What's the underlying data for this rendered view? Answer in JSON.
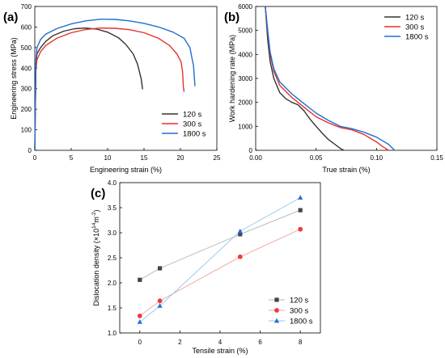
{
  "chart_data": [
    {
      "panel": "(a)",
      "type": "line",
      "xlabel": "Engineering strain (%)",
      "ylabel": "Engineering stress (MPa)",
      "xlim": [
        0,
        25
      ],
      "ylim": [
        0,
        700
      ],
      "xticks": [
        0,
        5,
        10,
        15,
        20,
        25
      ],
      "yticks": [
        0,
        100,
        200,
        300,
        400,
        500,
        600,
        700
      ],
      "legend_position": "bottom-right",
      "series": [
        {
          "name": "120 s",
          "color": "#333333",
          "x": [
            0,
            0.15,
            0.3,
            0.8,
            1.5,
            2.5,
            4,
            5.5,
            7,
            8.5,
            10,
            11.5,
            12.5,
            13.5,
            14.1,
            14.6,
            14.8
          ],
          "y": [
            0,
            420,
            470,
            500,
            530,
            558,
            580,
            592,
            595,
            590,
            575,
            548,
            515,
            470,
            420,
            350,
            297
          ]
        },
        {
          "name": "300 s",
          "color": "#e8302a",
          "x": [
            0,
            0.15,
            0.3,
            0.8,
            1.5,
            3,
            5,
            7,
            9,
            11,
            13,
            15,
            17,
            18.5,
            19.5,
            20.1,
            20.3,
            20.4,
            20.5
          ],
          "y": [
            0,
            390,
            440,
            480,
            510,
            545,
            572,
            588,
            595,
            594,
            587,
            572,
            545,
            510,
            470,
            430,
            380,
            310,
            285
          ]
        },
        {
          "name": "1800 s",
          "color": "#1f6fd1",
          "x": [
            0,
            0.15,
            0.3,
            0.8,
            1.5,
            3,
            5,
            7,
            9,
            11,
            13,
            15,
            17,
            19,
            20.5,
            21.3,
            21.8,
            22
          ],
          "y": [
            0,
            440,
            500,
            540,
            565,
            592,
            615,
            630,
            638,
            637,
            630,
            618,
            600,
            575,
            545,
            500,
            410,
            312
          ]
        }
      ]
    },
    {
      "panel": "(b)",
      "type": "line",
      "xlabel": "True strain (%)",
      "ylabel": "Work hardening rate (MPa)",
      "xlim": [
        0,
        0.15
      ],
      "ylim": [
        0,
        6000
      ],
      "xticks": [
        "0.00",
        "0.05",
        "0.10",
        "0.15"
      ],
      "yticks": [
        0,
        1000,
        2000,
        3000,
        4000,
        5000,
        6000
      ],
      "legend_position": "top-right",
      "series": [
        {
          "name": "120 s",
          "color": "#333333",
          "x": [
            0.008,
            0.01,
            0.012,
            0.015,
            0.02,
            0.025,
            0.03,
            0.035,
            0.04,
            0.045,
            0.05,
            0.055,
            0.06,
            0.065,
            0.07,
            0.073
          ],
          "y": [
            6000,
            4600,
            3700,
            3000,
            2400,
            2150,
            2000,
            1900,
            1650,
            1300,
            1000,
            720,
            460,
            270,
            80,
            0
          ]
        },
        {
          "name": "300 s",
          "color": "#e8302a",
          "x": [
            0.008,
            0.01,
            0.012,
            0.015,
            0.02,
            0.03,
            0.04,
            0.05,
            0.06,
            0.07,
            0.08,
            0.09,
            0.1,
            0.105,
            0.11
          ],
          "y": [
            6000,
            4900,
            4000,
            3300,
            2700,
            2200,
            1800,
            1400,
            1150,
            950,
            850,
            650,
            350,
            160,
            0
          ]
        },
        {
          "name": "1800 s",
          "color": "#1f6fd1",
          "x": [
            0.008,
            0.01,
            0.012,
            0.015,
            0.02,
            0.03,
            0.04,
            0.05,
            0.06,
            0.07,
            0.08,
            0.09,
            0.1,
            0.11,
            0.115
          ],
          "y": [
            6000,
            5000,
            4100,
            3400,
            2850,
            2350,
            1950,
            1550,
            1250,
            1000,
            900,
            750,
            550,
            250,
            0
          ]
        }
      ]
    },
    {
      "panel": "(c)",
      "type": "scatter",
      "xlabel": "Tensile strain (%)",
      "ylabel_prefix": "Dislocation density (×10",
      "ylabel_exponent": "14",
      "ylabel_unit": "m",
      "ylabel_unit_exponent": "-2",
      "ylabel_suffix": ")",
      "xlim": [
        -1,
        9
      ],
      "ylim": [
        1.0,
        4.0
      ],
      "xticks": [
        0,
        2,
        4,
        6,
        8
      ],
      "yticks": [
        "1.0",
        "1.5",
        "2.0",
        "2.5",
        "3.0",
        "3.5",
        "4.0"
      ],
      "legend_position": "bottom-right",
      "series": [
        {
          "name": "120 s",
          "color": "#444444",
          "line_color": "#b5b5b5",
          "marker": "square",
          "x": [
            0,
            1,
            5,
            8
          ],
          "y": [
            2.06,
            2.29,
            2.97,
            3.45
          ]
        },
        {
          "name": "300 s",
          "color": "#ef3b3b",
          "line_color": "#f4a3a3",
          "marker": "circle",
          "x": [
            0,
            1,
            5,
            8
          ],
          "y": [
            1.34,
            1.64,
            2.52,
            3.07
          ]
        },
        {
          "name": "1800 s",
          "color": "#2a6fd6",
          "line_color": "#93c6ef",
          "marker": "triangle",
          "x": [
            0,
            1,
            5,
            8
          ],
          "y": [
            1.22,
            1.54,
            3.03,
            3.7
          ]
        }
      ]
    }
  ]
}
